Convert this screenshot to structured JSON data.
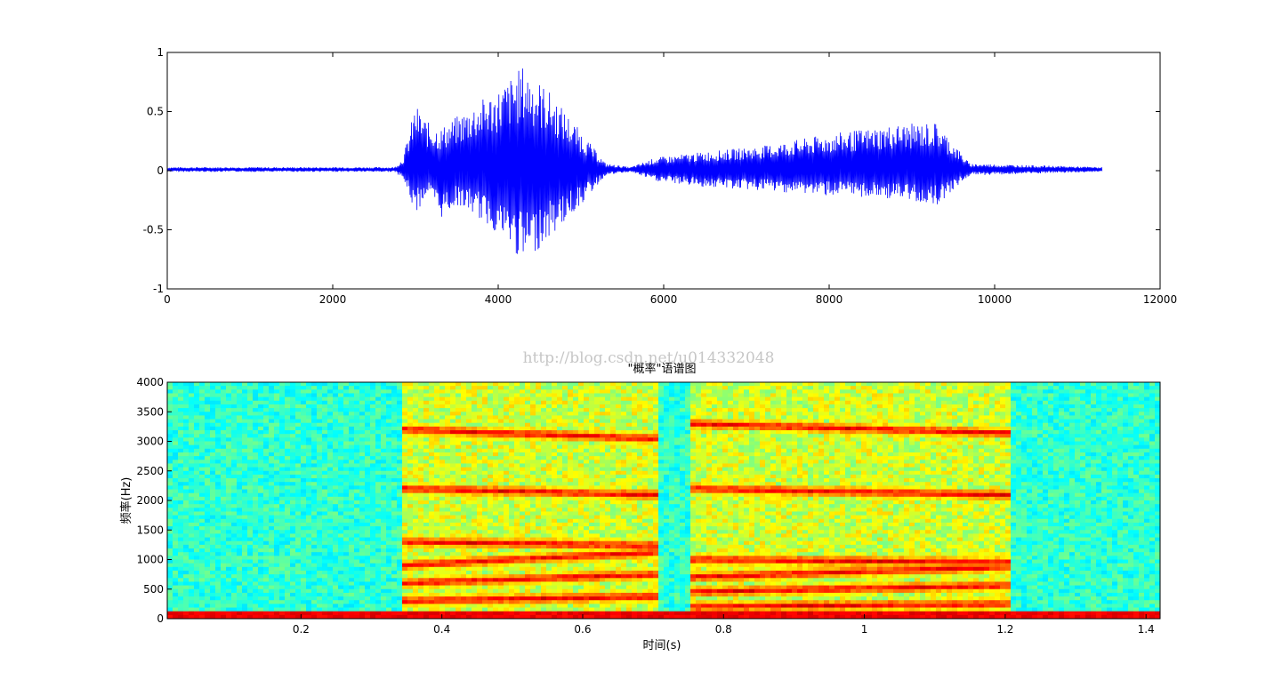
{
  "watermark": "http://blog.csdn.net/u014332048",
  "chart_data": [
    {
      "type": "line",
      "title": "",
      "xlabel": "",
      "ylabel": "",
      "xlim": [
        0,
        12000
      ],
      "ylim": [
        -1,
        1
      ],
      "x_ticks": [
        0,
        2000,
        4000,
        6000,
        8000,
        10000,
        12000
      ],
      "x_tick_labels": [
        "0",
        "2000",
        "4000",
        "6000",
        "8000",
        "10000",
        "12000"
      ],
      "y_ticks": [
        -1,
        -0.5,
        0,
        0.5,
        1
      ],
      "y_tick_labels": [
        "-1",
        "-0.5",
        "0",
        "0.5",
        "1"
      ],
      "grid": false,
      "line_color": "#0000ff",
      "series": [
        {
          "samples": 11300,
          "envelope": [
            {
              "x": 0,
              "upper": 0.02,
              "lower": -0.02
            },
            {
              "x": 2750,
              "upper": 0.02,
              "lower": -0.02
            },
            {
              "x": 2850,
              "upper": 0.1,
              "lower": -0.08
            },
            {
              "x": 3000,
              "upper": 0.55,
              "lower": -0.38
            },
            {
              "x": 3150,
              "upper": 0.4,
              "lower": -0.2
            },
            {
              "x": 3300,
              "upper": 0.35,
              "lower": -0.42
            },
            {
              "x": 3500,
              "upper": 0.45,
              "lower": -0.3
            },
            {
              "x": 3700,
              "upper": 0.55,
              "lower": -0.38
            },
            {
              "x": 4000,
              "upper": 0.68,
              "lower": -0.55
            },
            {
              "x": 4300,
              "upper": 0.88,
              "lower": -0.8
            },
            {
              "x": 4600,
              "upper": 0.68,
              "lower": -0.6
            },
            {
              "x": 5000,
              "upper": 0.32,
              "lower": -0.3
            },
            {
              "x": 5300,
              "upper": 0.05,
              "lower": -0.05
            },
            {
              "x": 5600,
              "upper": 0.02,
              "lower": -0.02
            },
            {
              "x": 5900,
              "upper": 0.1,
              "lower": -0.1
            },
            {
              "x": 6500,
              "upper": 0.15,
              "lower": -0.15
            },
            {
              "x": 7200,
              "upper": 0.2,
              "lower": -0.18
            },
            {
              "x": 8000,
              "upper": 0.3,
              "lower": -0.22
            },
            {
              "x": 8800,
              "upper": 0.38,
              "lower": -0.25
            },
            {
              "x": 9300,
              "upper": 0.4,
              "lower": -0.3
            },
            {
              "x": 9700,
              "upper": 0.05,
              "lower": -0.05
            },
            {
              "x": 11300,
              "upper": 0.02,
              "lower": -0.02
            }
          ]
        }
      ]
    },
    {
      "type": "heatmap",
      "title": "\"概率\"语谱图",
      "xlabel": "时间(s)",
      "ylabel": "频率(Hz)",
      "xlim": [
        0.01,
        1.42
      ],
      "ylim": [
        0,
        4000
      ],
      "x_ticks": [
        0.2,
        0.4,
        0.6,
        0.8,
        1,
        1.2,
        1.4
      ],
      "x_tick_labels": [
        "0.2",
        "0.4",
        "0.6",
        "0.8",
        "1",
        "1.2",
        "1.4"
      ],
      "y_ticks": [
        0,
        500,
        1000,
        1500,
        2000,
        2500,
        3000,
        3500,
        4000
      ],
      "y_tick_labels": [
        "0",
        "500",
        "1000",
        "1500",
        "2000",
        "2500",
        "3000",
        "3500",
        "4000"
      ],
      "colormap": "jet",
      "colormap_stops": [
        "#00008f",
        "#0000ff",
        "#00ffff",
        "#ffff00",
        "#ff0000",
        "#800000"
      ],
      "speech_segments": [
        {
          "t_start": 0.345,
          "t_end": 0.71,
          "formants_hz": [
            300,
            600,
            900,
            1300,
            2200,
            3200
          ]
        },
        {
          "t_start": 0.75,
          "t_end": 1.21,
          "formants_hz": [
            200,
            450,
            700,
            1000,
            2200,
            3300
          ]
        }
      ],
      "silence_level": 0.42
    }
  ]
}
